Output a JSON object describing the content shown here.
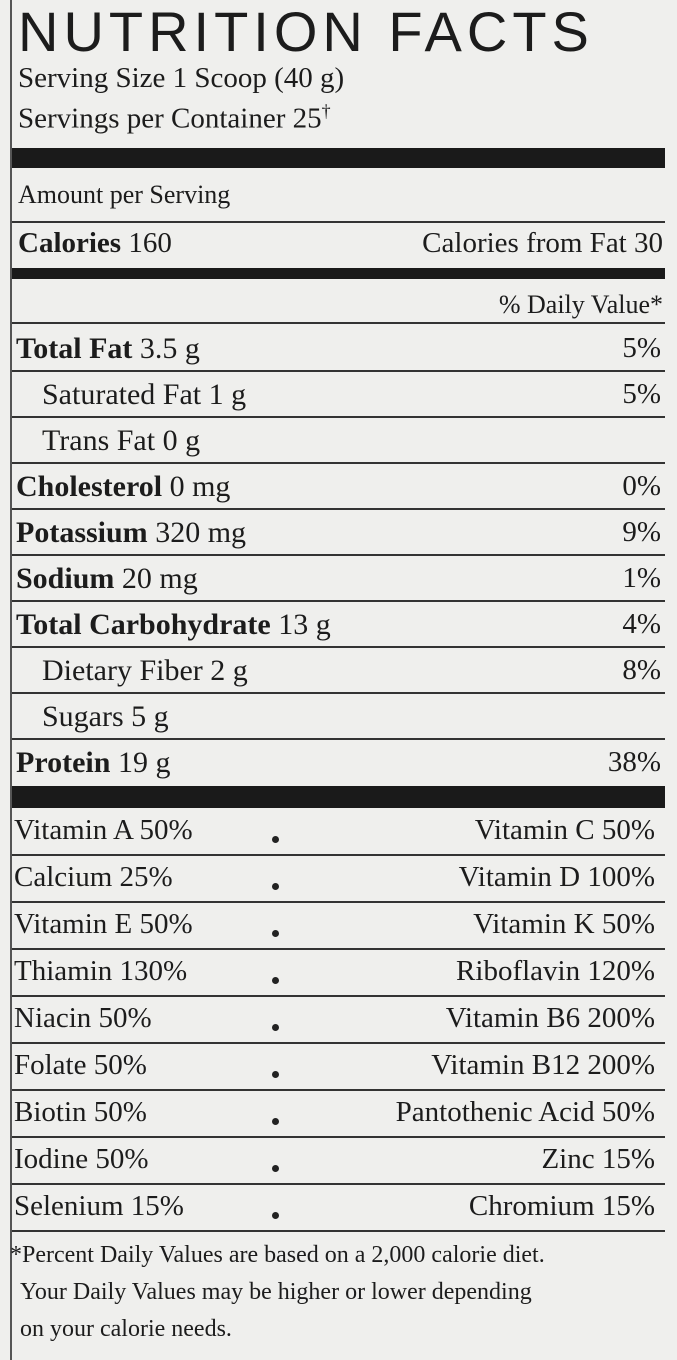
{
  "header": {
    "title": "NUTRITION FACTS",
    "serving_size": "Serving Size 1 Scoop (40 g)",
    "servings_per_container": "Servings per Container 25",
    "servings_mark": "†"
  },
  "amount_per_serving": "Amount per Serving",
  "calories": {
    "name": "Calories",
    "amount": "160",
    "from_fat": "Calories from Fat 30"
  },
  "daily_value_header": "% Daily Value*",
  "nutrients": [
    {
      "name": "Total Fat",
      "amount": "3.5 g",
      "dv": "5%",
      "bold": true,
      "indent": false
    },
    {
      "name": "Saturated Fat",
      "amount": "1 g",
      "dv": "5%",
      "bold": false,
      "indent": true
    },
    {
      "name": "Trans Fat",
      "amount": "0 g",
      "dv": null,
      "bold": false,
      "indent": true
    },
    {
      "name": "Cholesterol",
      "amount": "0 mg",
      "dv": "0%",
      "bold": true,
      "indent": false
    },
    {
      "name": "Potassium",
      "amount": "320 mg",
      "dv": "9%",
      "bold": true,
      "indent": false
    },
    {
      "name": "Sodium",
      "amount": "20 mg",
      "dv": "1%",
      "bold": true,
      "indent": false
    },
    {
      "name": "Total Carbohydrate",
      "amount": "13 g",
      "dv": "4%",
      "bold": true,
      "indent": false
    },
    {
      "name": "Dietary Fiber",
      "amount": "2 g",
      "dv": "8%",
      "bold": false,
      "indent": true
    },
    {
      "name": "Sugars",
      "amount": "5 g",
      "dv": null,
      "bold": false,
      "indent": true
    },
    {
      "name": "Protein",
      "amount": "19 g",
      "dv": "38%",
      "bold": true,
      "indent": false
    }
  ],
  "vitamins": [
    [
      "Vitamin A 50%",
      "Vitamin C 50%"
    ],
    [
      "Calcium 25%",
      "Vitamin D 100%"
    ],
    [
      "Vitamin E 50%",
      "Vitamin K 50%"
    ],
    [
      "Thiamin 130%",
      "Riboflavin 120%"
    ],
    [
      "Niacin 50%",
      "Vitamin B6 200%"
    ],
    [
      "Folate 50%",
      "Vitamin B12 200%"
    ],
    [
      "Biotin 50%",
      "Pantothenic Acid 50%"
    ],
    [
      "Iodine 50%",
      "Zinc 15%"
    ],
    [
      "Selenium 15%",
      "Chromium 15%"
    ]
  ],
  "footnote": [
    "*Percent Daily Values are based on a 2,000 calorie diet.",
    "Your Daily Values may be higher or lower depending",
    "on your calorie needs."
  ]
}
